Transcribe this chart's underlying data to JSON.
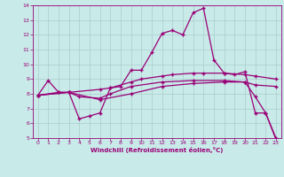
{
  "xlabel": "Windchill (Refroidissement éolien,°C)",
  "xlim": [
    -0.5,
    23.5
  ],
  "ylim": [
    5,
    14
  ],
  "xticks": [
    0,
    1,
    2,
    3,
    4,
    5,
    6,
    7,
    8,
    9,
    10,
    11,
    12,
    13,
    14,
    15,
    16,
    17,
    18,
    19,
    20,
    21,
    22,
    23
  ],
  "yticks": [
    5,
    6,
    7,
    8,
    9,
    10,
    11,
    12,
    13,
    14
  ],
  "bg_color": "#c8eae8",
  "grid_color": "#aacccc",
  "line_color": "#990077",
  "lines": [
    {
      "x": [
        0,
        1,
        2,
        3,
        4,
        5,
        6,
        7,
        8,
        9,
        10,
        11,
        12,
        13,
        14,
        15,
        16,
        17,
        18,
        19,
        20,
        21,
        22,
        23
      ],
      "y": [
        7.9,
        8.9,
        8.1,
        8.1,
        6.3,
        6.5,
        6.7,
        8.4,
        8.5,
        9.6,
        9.6,
        10.8,
        12.1,
        12.3,
        12.0,
        13.5,
        13.8,
        10.3,
        9.4,
        9.3,
        9.5,
        6.7,
        6.7,
        4.9
      ]
    },
    {
      "x": [
        0,
        2,
        3,
        6,
        7,
        9,
        10,
        12,
        13,
        15,
        16,
        18,
        20,
        21,
        23
      ],
      "y": [
        7.9,
        8.1,
        8.1,
        8.3,
        8.4,
        8.8,
        9.0,
        9.2,
        9.3,
        9.4,
        9.4,
        9.4,
        9.3,
        9.2,
        9.0
      ]
    },
    {
      "x": [
        0,
        3,
        4,
        6,
        7,
        9,
        12,
        15,
        18,
        20,
        21,
        23
      ],
      "y": [
        7.9,
        8.1,
        7.8,
        7.7,
        8.0,
        8.5,
        8.8,
        8.9,
        8.9,
        8.8,
        8.6,
        8.5
      ]
    },
    {
      "x": [
        0,
        3,
        6,
        9,
        12,
        15,
        18,
        20,
        21,
        22,
        23
      ],
      "y": [
        7.9,
        8.1,
        7.6,
        8.0,
        8.5,
        8.7,
        8.8,
        8.8,
        7.8,
        6.7,
        5.0
      ]
    }
  ]
}
